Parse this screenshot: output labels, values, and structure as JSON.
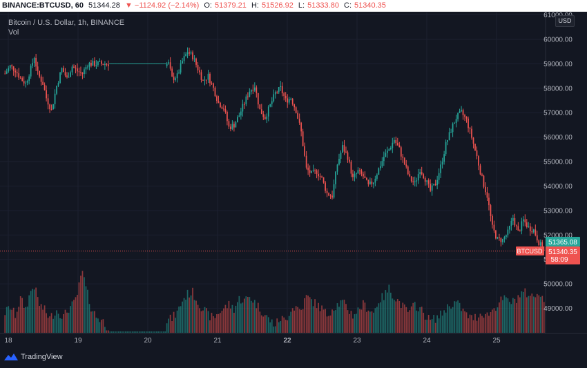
{
  "header": {
    "symbol": "BINANCE:BTCUSD, 60",
    "last": "51344.28",
    "change": "▼ −1124.92 (−2.14%)",
    "open_label": "O:",
    "open": "51379.21",
    "high_label": "H:",
    "high": "51526.92",
    "low_label": "L:",
    "low": "51333.80",
    "close_label": "C:",
    "close": "51340.35"
  },
  "legend": {
    "title": "Bitcoin / U.S. Dollar, 1h, BINANCE",
    "volume_label": "Vol"
  },
  "currency_button": "USD",
  "brand": {
    "name": "TradingView",
    "icon": "tradingview-logo-icon"
  },
  "colors": {
    "up": "#26a69a",
    "down": "#ef5350",
    "background": "#131722",
    "accent": "#2962ff"
  },
  "chart_data": {
    "type": "candlestick",
    "title": "Bitcoin / U.S. Dollar, 1h, BINANCE",
    "symbol": "BTCUSD",
    "interval": "1h",
    "price_axis_ticks": [
      "61000.00",
      "60000.00",
      "59000.00",
      "58000.00",
      "57000.00",
      "56000.00",
      "55000.00",
      "54000.00",
      "53000.00",
      "52000.00",
      "51000.00",
      "50000.00",
      "49000.00"
    ],
    "ylim": [
      48000,
      61100
    ],
    "time_axis_ticks": [
      "18",
      "19",
      "20",
      "21",
      "22",
      "23",
      "24",
      "25"
    ],
    "time_tick_positions": [
      0,
      24,
      48,
      72,
      96,
      120,
      144,
      168
    ],
    "bars_total": 188,
    "gap_hours": [
      49,
      94
    ],
    "current_price_label": {
      "symbol": "BTCUSD",
      "price": "51340.35",
      "countdown": "58:09"
    },
    "high_price_label": "51365.08",
    "volume_label": "Vol",
    "grid": true,
    "anchors": [
      [
        0,
        58600
      ],
      [
        3,
        58900
      ],
      [
        6,
        58750
      ],
      [
        9,
        58400
      ],
      [
        12,
        58200
      ],
      [
        15,
        58800
      ],
      [
        17,
        59300
      ],
      [
        19,
        58600
      ],
      [
        22,
        58200
      ],
      [
        24,
        57600
      ],
      [
        27,
        57100
      ],
      [
        30,
        58100
      ],
      [
        33,
        58800
      ],
      [
        36,
        58400
      ],
      [
        39,
        58900
      ],
      [
        42,
        58700
      ],
      [
        45,
        58600
      ],
      [
        48,
        59000
      ],
      [
        95,
        59000
      ],
      [
        97,
        58400
      ],
      [
        100,
        58500
      ],
      [
        103,
        59100
      ],
      [
        106,
        59500
      ],
      [
        109,
        59300
      ],
      [
        112,
        58800
      ],
      [
        115,
        58300
      ],
      [
        118,
        58500
      ],
      [
        121,
        58000
      ],
      [
        124,
        57400
      ],
      [
        127,
        57200
      ],
      [
        130,
        56400
      ],
      [
        133,
        56500
      ],
      [
        136,
        56900
      ],
      [
        139,
        57400
      ],
      [
        142,
        57900
      ],
      [
        145,
        58100
      ],
      [
        148,
        57100
      ],
      [
        151,
        56800
      ],
      [
        154,
        57300
      ],
      [
        157,
        57800
      ],
      [
        160,
        58000
      ],
      [
        163,
        57500
      ],
      [
        166,
        57600
      ],
      [
        169,
        57100
      ],
      [
        172,
        56200
      ],
      [
        175,
        54700
      ],
      [
        178,
        54500
      ],
      [
        181,
        54600
      ],
      [
        184,
        54300
      ],
      [
        187,
        53700
      ],
      [
        190,
        53600
      ],
      [
        193,
        54900
      ],
      [
        196,
        55600
      ],
      [
        199,
        55200
      ],
      [
        202,
        54300
      ],
      [
        205,
        54600
      ],
      [
        208,
        54400
      ],
      [
        211,
        54000
      ],
      [
        214,
        54200
      ],
      [
        217,
        54700
      ],
      [
        220,
        55200
      ],
      [
        223,
        55500
      ],
      [
        226,
        55900
      ],
      [
        229,
        55500
      ],
      [
        232,
        54900
      ],
      [
        235,
        54300
      ],
      [
        238,
        54100
      ],
      [
        241,
        54700
      ],
      [
        244,
        54300
      ],
      [
        247,
        53800
      ],
      [
        250,
        54100
      ],
      [
        253,
        54800
      ],
      [
        256,
        55700
      ],
      [
        259,
        56300
      ],
      [
        262,
        56800
      ],
      [
        265,
        57000
      ],
      [
        268,
        56700
      ],
      [
        271,
        56000
      ],
      [
        274,
        55200
      ],
      [
        277,
        54300
      ],
      [
        280,
        53600
      ],
      [
        283,
        52300
      ],
      [
        286,
        51800
      ],
      [
        289,
        51800
      ],
      [
        292,
        52100
      ],
      [
        295,
        52700
      ],
      [
        298,
        52100
      ],
      [
        301,
        52600
      ],
      [
        304,
        52300
      ],
      [
        307,
        52200
      ],
      [
        310,
        51700
      ],
      [
        313,
        51340
      ]
    ],
    "volume_anchors": [
      [
        0,
        0.25
      ],
      [
        3,
        0.32
      ],
      [
        6,
        0.22
      ],
      [
        9,
        0.42
      ],
      [
        12,
        0.3
      ],
      [
        15,
        0.52
      ],
      [
        17,
        0.58
      ],
      [
        20,
        0.35
      ],
      [
        23,
        0.28
      ],
      [
        26,
        0.18
      ],
      [
        30,
        0.28
      ],
      [
        34,
        0.2
      ],
      [
        37,
        0.3
      ],
      [
        40,
        0.36
      ],
      [
        42,
        0.48
      ],
      [
        45,
        0.76
      ],
      [
        47,
        0.55
      ],
      [
        50,
        0.32
      ],
      [
        53,
        0.2
      ],
      [
        56,
        0.16
      ],
      [
        58,
        0.12
      ],
      [
        60,
        0.05
      ],
      [
        94,
        0.15
      ],
      [
        97,
        0.18
      ],
      [
        100,
        0.25
      ],
      [
        103,
        0.4
      ],
      [
        106,
        0.48
      ],
      [
        109,
        0.5
      ],
      [
        112,
        0.38
      ],
      [
        115,
        0.3
      ],
      [
        118,
        0.22
      ],
      [
        121,
        0.18
      ],
      [
        124,
        0.25
      ],
      [
        127,
        0.3
      ],
      [
        130,
        0.35
      ],
      [
        133,
        0.3
      ],
      [
        136,
        0.42
      ],
      [
        139,
        0.4
      ],
      [
        142,
        0.45
      ],
      [
        145,
        0.38
      ],
      [
        148,
        0.3
      ],
      [
        151,
        0.22
      ],
      [
        154,
        0.15
      ],
      [
        157,
        0.1
      ],
      [
        160,
        0.18
      ],
      [
        163,
        0.15
      ],
      [
        166,
        0.3
      ],
      [
        169,
        0.32
      ],
      [
        172,
        0.28
      ],
      [
        175,
        0.45
      ],
      [
        178,
        0.4
      ],
      [
        181,
        0.35
      ],
      [
        184,
        0.3
      ],
      [
        187,
        0.22
      ],
      [
        190,
        0.3
      ],
      [
        193,
        0.35
      ],
      [
        196,
        0.38
      ],
      [
        199,
        0.3
      ],
      [
        202,
        0.22
      ],
      [
        205,
        0.28
      ],
      [
        208,
        0.35
      ],
      [
        211,
        0.3
      ],
      [
        214,
        0.25
      ],
      [
        217,
        0.4
      ],
      [
        220,
        0.45
      ],
      [
        223,
        0.55
      ],
      [
        226,
        0.45
      ],
      [
        229,
        0.38
      ],
      [
        232,
        0.3
      ],
      [
        235,
        0.25
      ],
      [
        238,
        0.35
      ],
      [
        241,
        0.3
      ],
      [
        244,
        0.22
      ],
      [
        247,
        0.15
      ],
      [
        250,
        0.18
      ],
      [
        253,
        0.22
      ],
      [
        256,
        0.3
      ],
      [
        259,
        0.35
      ],
      [
        262,
        0.38
      ],
      [
        265,
        0.3
      ],
      [
        268,
        0.22
      ],
      [
        271,
        0.18
      ],
      [
        274,
        0.2
      ],
      [
        277,
        0.25
      ],
      [
        280,
        0.22
      ],
      [
        283,
        0.28
      ],
      [
        286,
        0.35
      ],
      [
        289,
        0.42
      ],
      [
        292,
        0.4
      ],
      [
        295,
        0.38
      ],
      [
        298,
        0.45
      ],
      [
        301,
        0.5
      ],
      [
        304,
        0.48
      ],
      [
        307,
        0.44
      ],
      [
        310,
        0.52
      ],
      [
        313,
        0.4
      ]
    ]
  }
}
